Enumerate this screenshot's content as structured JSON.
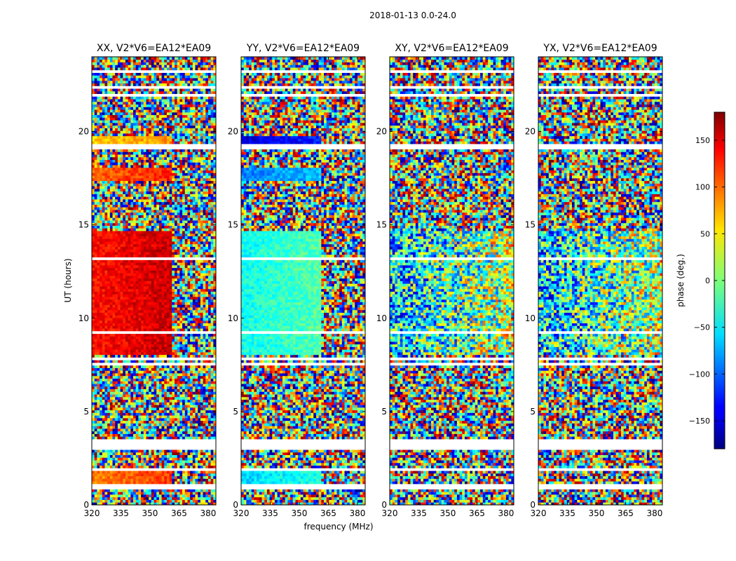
{
  "figure": {
    "suptitle": "2018-01-13 0.0-24.0",
    "xlabel": "frequency (MHz)",
    "ylabel": "UT (hours)",
    "colorbar": {
      "label": "phase (deg.)",
      "range": [
        -180,
        180
      ],
      "ticks": [
        150,
        100,
        50,
        0,
        -50,
        -100,
        -150
      ],
      "tick_labels": [
        "150",
        "100",
        "50",
        "0",
        "−50",
        "−100",
        "−150"
      ],
      "colormap": "jet"
    }
  },
  "chart_data": [
    {
      "type": "heatmap",
      "title": "XX, V2*V6=EA12*EA09",
      "xlim": [
        320,
        384
      ],
      "ylim": [
        0,
        24
      ],
      "xticks": [
        320,
        335,
        350,
        365,
        380
      ],
      "xtick_labels": [
        "320",
        "335",
        "350",
        "365",
        "380"
      ],
      "yticks": [
        0,
        5,
        10,
        15,
        20
      ],
      "ytick_labels": [
        "0",
        "5",
        "10",
        "15",
        "20"
      ],
      "value": "phase (deg.)",
      "coherent_regions": [
        {
          "t": [
            8.0,
            14.7
          ],
          "f": [
            320,
            361
          ],
          "phase_deg": 130
        },
        {
          "t": [
            17.4,
            18.0
          ],
          "f": [
            320,
            361
          ],
          "phase_deg": 100
        },
        {
          "t": [
            19.3,
            19.7
          ],
          "f": [
            320,
            361
          ],
          "phase_deg": 60
        },
        {
          "t": [
            1.0,
            2.0
          ],
          "f": [
            320,
            361
          ],
          "phase_deg": 90
        }
      ]
    },
    {
      "type": "heatmap",
      "title": "YY, V2*V6=EA12*EA09",
      "xlim": [
        320,
        384
      ],
      "ylim": [
        0,
        24
      ],
      "xticks": [
        320,
        335,
        350,
        365,
        380
      ],
      "xtick_labels": [
        "320",
        "335",
        "350",
        "365",
        "380"
      ],
      "yticks": [
        0,
        5,
        10,
        15,
        20
      ],
      "ytick_labels": [
        "0",
        "5",
        "10",
        "15",
        "20"
      ],
      "value": "phase (deg.)",
      "coherent_regions": [
        {
          "t": [
            8.0,
            14.7
          ],
          "f": [
            320,
            361
          ],
          "phase_deg": -40
        },
        {
          "t": [
            17.4,
            18.0
          ],
          "f": [
            320,
            361
          ],
          "phase_deg": -90
        },
        {
          "t": [
            19.3,
            19.7
          ],
          "f": [
            320,
            361
          ],
          "phase_deg": -150
        },
        {
          "t": [
            1.0,
            2.0
          ],
          "f": [
            320,
            361
          ],
          "phase_deg": -60
        }
      ]
    },
    {
      "type": "heatmap",
      "title": "XY, V2*V6=EA12*EA09",
      "xlim": [
        320,
        384
      ],
      "ylim": [
        0,
        24
      ],
      "xticks": [
        320,
        335,
        350,
        365,
        380
      ],
      "xtick_labels": [
        "320",
        "335",
        "350",
        "365",
        "380"
      ],
      "yticks": [
        0,
        5,
        10,
        15,
        20
      ],
      "ytick_labels": [
        "0",
        "5",
        "10",
        "15",
        "20"
      ],
      "value": "phase (deg.)",
      "coherent_regions": []
    },
    {
      "type": "heatmap",
      "title": "YX, V2*V6=EA12*EA09",
      "xlim": [
        320,
        384
      ],
      "ylim": [
        0,
        24
      ],
      "xticks": [
        320,
        335,
        350,
        365,
        380
      ],
      "xtick_labels": [
        "320",
        "335",
        "350",
        "365",
        "380"
      ],
      "yticks": [
        0,
        5,
        10,
        15,
        20
      ],
      "ytick_labels": [
        "0",
        "5",
        "10",
        "15",
        "20"
      ],
      "value": "phase (deg.)",
      "coherent_regions": []
    }
  ]
}
